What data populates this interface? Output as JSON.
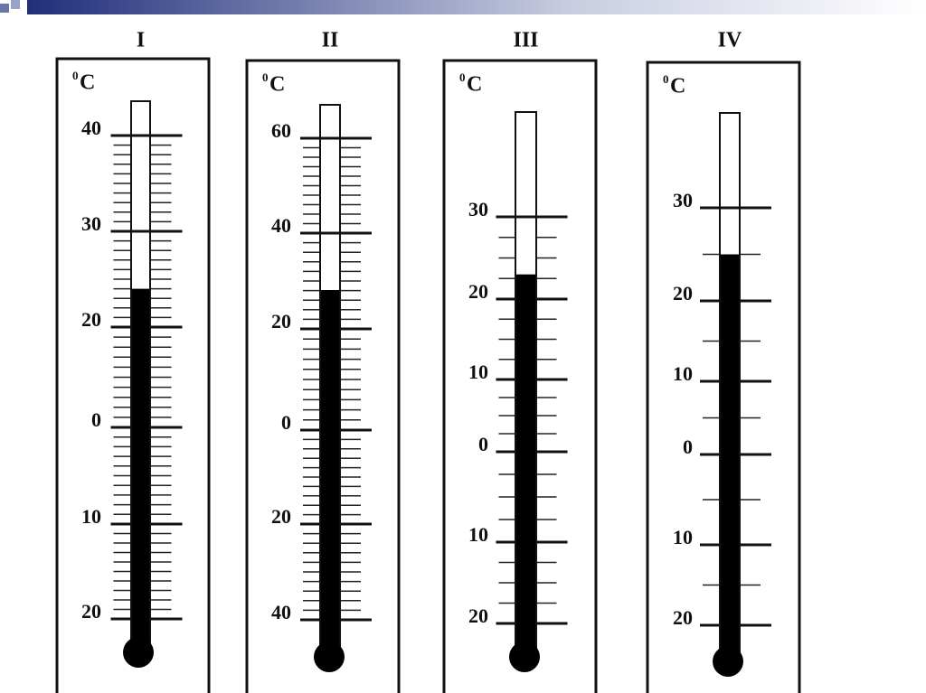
{
  "thermometers": [
    {
      "title": "I",
      "unit_sup": "0",
      "unit": "C",
      "reading": 24,
      "labels": [
        40,
        30,
        20,
        0,
        {
          "value": -10,
          "label": "10"
        },
        {
          "value": -20,
          "label": "20"
        }
      ]
    },
    {
      "title": "II",
      "unit_sup": "0",
      "unit": "C",
      "reading": 28,
      "labels": [
        60,
        40,
        20,
        0,
        {
          "value": -20,
          "label": "20"
        },
        {
          "value": -40,
          "label": "40"
        }
      ]
    },
    {
      "title": "III",
      "unit_sup": "0",
      "unit": "C",
      "reading": 23,
      "labels": [
        30,
        20,
        10,
        0,
        {
          "value": -10,
          "label": "10"
        },
        {
          "value": -20,
          "label": "20"
        }
      ]
    },
    {
      "title": "IV",
      "unit_sup": "0",
      "unit": "C",
      "reading": 25,
      "labels": [
        30,
        20,
        10,
        0,
        {
          "value": -10,
          "label": "10"
        },
        {
          "value": -20,
          "label": "20"
        }
      ]
    }
  ]
}
